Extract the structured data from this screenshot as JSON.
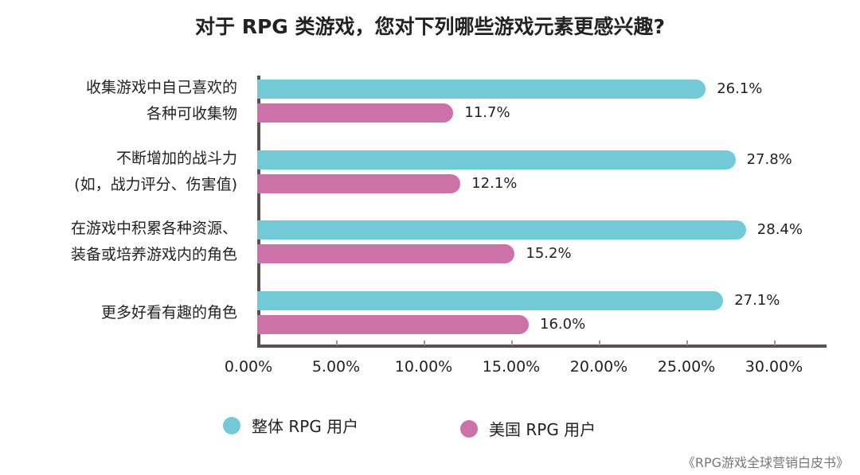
{
  "chart_data": {
    "type": "bar",
    "orientation": "horizontal",
    "title": "对于 RPG 类游戏，您对下列哪些游戏元素更感兴趣?",
    "categories": [
      "收集游戏中自己喜欢的\n各种可收集物",
      "不断增加的战斗力\n(如，战力评分、伤害值)",
      "在游戏中积累各种资源、\n装备或培养游戏内的角色",
      "更多好看有趣的角色"
    ],
    "series": [
      {
        "name": "整体 RPG 用户",
        "color": "#74c9d6",
        "values": [
          26.1,
          27.8,
          28.4,
          27.1
        ],
        "labels": [
          "26.1%",
          "27.8%",
          "28.4%",
          "27.1%"
        ]
      },
      {
        "name": "美国 RPG 用户",
        "color": "#cc72a8",
        "values": [
          11.7,
          12.1,
          15.2,
          16.0
        ],
        "labels": [
          "11.7%",
          "12.1%",
          "15.2%",
          "16.0%"
        ]
      }
    ],
    "xticks": [
      "0.00%",
      "5.00%",
      "10.00%",
      "15.00%",
      "20.00%",
      "25.00%",
      "30.00%"
    ],
    "xlim": [
      0,
      32
    ],
    "grid": false,
    "legend": "bottom"
  },
  "source": "《RPG游戏全球营销白皮书》"
}
